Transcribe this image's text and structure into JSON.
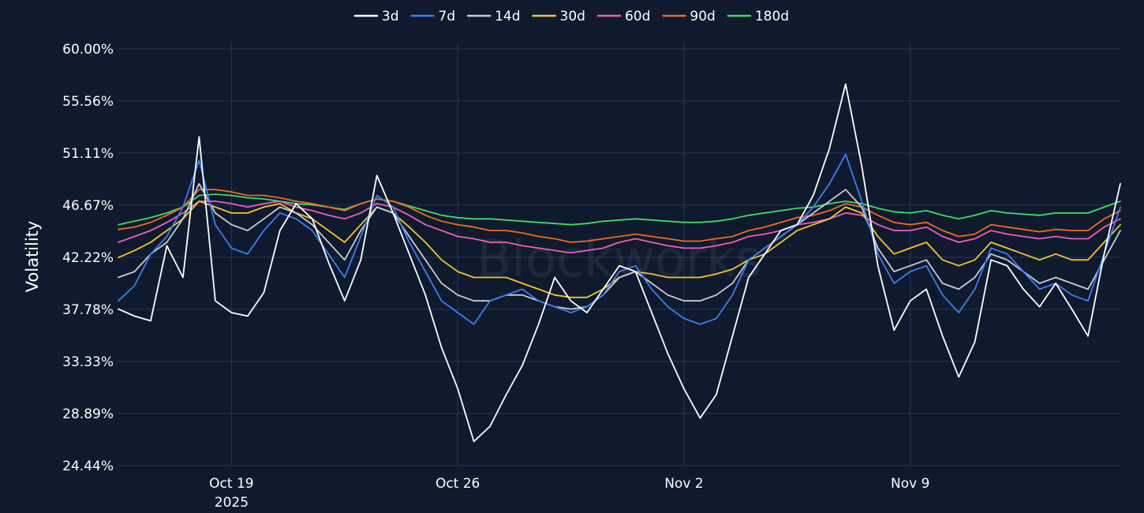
{
  "watermark": "Blockworks",
  "chart_data": {
    "type": "line",
    "title": "",
    "xlabel": "",
    "ylabel": "Volatility",
    "y_ticks": [
      "24.44%",
      "28.89%",
      "33.33%",
      "37.78%",
      "42.22%",
      "46.67%",
      "51.11%",
      "55.56%",
      "60.00%"
    ],
    "y_tick_values": [
      24.44,
      28.89,
      33.33,
      37.78,
      42.22,
      46.67,
      51.11,
      55.56,
      60.0
    ],
    "ylim": [
      24.44,
      60.0
    ],
    "x_ticks": [
      {
        "date": "2025-10-19",
        "label": "Oct 19",
        "sublabel": "2025"
      },
      {
        "date": "2025-10-26",
        "label": "Oct 26",
        "sublabel": ""
      },
      {
        "date": "2025-11-02",
        "label": "Nov 2",
        "sublabel": ""
      },
      {
        "date": "2025-11-09",
        "label": "Nov 9",
        "sublabel": ""
      }
    ],
    "xlim": [
      "2025-10-15 12:00",
      "2025-11-15 12:00"
    ],
    "grid": true,
    "legend_position": "top",
    "x": [
      "2025-10-15 12:00",
      "2025-10-16 00:00",
      "2025-10-16 12:00",
      "2025-10-17 00:00",
      "2025-10-17 12:00",
      "2025-10-18 00:00",
      "2025-10-18 12:00",
      "2025-10-19 00:00",
      "2025-10-19 12:00",
      "2025-10-20 00:00",
      "2025-10-20 12:00",
      "2025-10-21 00:00",
      "2025-10-21 12:00",
      "2025-10-22 00:00",
      "2025-10-22 12:00",
      "2025-10-23 00:00",
      "2025-10-23 12:00",
      "2025-10-24 00:00",
      "2025-10-24 12:00",
      "2025-10-25 00:00",
      "2025-10-25 12:00",
      "2025-10-26 00:00",
      "2025-10-26 12:00",
      "2025-10-27 00:00",
      "2025-10-27 12:00",
      "2025-10-28 00:00",
      "2025-10-28 12:00",
      "2025-10-29 00:00",
      "2025-10-29 12:00",
      "2025-10-30 00:00",
      "2025-10-30 12:00",
      "2025-10-31 00:00",
      "2025-10-31 12:00",
      "2025-11-01 00:00",
      "2025-11-01 12:00",
      "2025-11-02 00:00",
      "2025-11-02 12:00",
      "2025-11-03 00:00",
      "2025-11-03 12:00",
      "2025-11-04 00:00",
      "2025-11-04 12:00",
      "2025-11-05 00:00",
      "2025-11-05 12:00",
      "2025-11-06 00:00",
      "2025-11-06 12:00",
      "2025-11-07 00:00",
      "2025-11-07 12:00",
      "2025-11-08 00:00",
      "2025-11-08 12:00",
      "2025-11-09 00:00",
      "2025-11-09 12:00",
      "2025-11-10 00:00",
      "2025-11-10 12:00",
      "2025-11-11 00:00",
      "2025-11-11 12:00",
      "2025-11-12 00:00",
      "2025-11-12 12:00",
      "2025-11-13 00:00",
      "2025-11-13 12:00",
      "2025-11-14 00:00",
      "2025-11-14 12:00",
      "2025-11-15 00:00",
      "2025-11-15 12:00"
    ],
    "series": [
      {
        "name": "3d",
        "color": "#ffffff",
        "values": [
          37.8,
          37.2,
          36.8,
          43.2,
          40.5,
          52.5,
          38.5,
          37.5,
          37.2,
          39.2,
          44.5,
          46.8,
          45.5,
          41.8,
          38.5,
          42.0,
          49.2,
          46.0,
          42.5,
          39.0,
          34.5,
          31.0,
          26.5,
          27.8,
          30.5,
          33.0,
          36.5,
          40.5,
          38.5,
          37.5,
          39.5,
          41.5,
          41.0,
          37.5,
          34.0,
          31.0,
          28.5,
          30.5,
          35.5,
          40.5,
          42.5,
          44.5,
          45.0,
          47.5,
          51.5,
          57.0,
          50.0,
          41.5,
          36.0,
          38.5,
          39.5,
          35.5,
          32.0,
          35.0,
          42.0,
          41.5,
          39.5,
          38.0,
          40.0,
          37.8,
          35.5,
          42.5,
          48.5
        ]
      },
      {
        "name": "7d",
        "color": "#3d7ef0",
        "values": [
          38.5,
          39.8,
          42.5,
          44.0,
          46.5,
          50.5,
          45.0,
          43.0,
          42.5,
          44.5,
          46.0,
          45.5,
          44.5,
          42.5,
          40.5,
          44.0,
          47.5,
          46.5,
          43.5,
          41.0,
          38.5,
          37.5,
          36.5,
          38.5,
          39.0,
          39.5,
          38.5,
          38.0,
          37.5,
          38.0,
          39.0,
          41.0,
          41.5,
          39.5,
          38.0,
          37.0,
          36.5,
          37.0,
          39.0,
          42.0,
          43.0,
          44.0,
          45.0,
          46.5,
          48.5,
          51.0,
          47.0,
          42.5,
          40.0,
          41.0,
          41.5,
          39.0,
          37.5,
          39.5,
          43.0,
          42.5,
          41.0,
          39.5,
          40.0,
          39.0,
          38.5,
          42.5,
          46.5
        ]
      },
      {
        "name": "14d",
        "color": "#c8ccd4",
        "values": [
          40.5,
          41.0,
          42.5,
          43.5,
          45.5,
          48.5,
          46.0,
          45.0,
          44.5,
          45.5,
          46.5,
          46.0,
          45.0,
          43.5,
          42.0,
          44.5,
          46.5,
          46.0,
          44.0,
          42.0,
          40.0,
          39.0,
          38.5,
          38.5,
          39.0,
          39.0,
          38.5,
          38.0,
          37.8,
          38.0,
          39.0,
          40.5,
          41.0,
          40.0,
          39.0,
          38.5,
          38.5,
          39.0,
          40.0,
          42.0,
          43.0,
          44.0,
          45.0,
          46.0,
          47.0,
          48.0,
          46.5,
          43.0,
          41.0,
          41.5,
          42.0,
          40.0,
          39.5,
          40.5,
          42.5,
          42.0,
          41.0,
          40.0,
          40.5,
          40.0,
          39.5,
          42.0,
          44.5
        ]
      },
      {
        "name": "30d",
        "color": "#f4c430",
        "values": [
          42.2,
          42.8,
          43.5,
          44.5,
          45.5,
          47.0,
          46.5,
          46.0,
          46.0,
          46.5,
          46.8,
          46.0,
          45.5,
          44.5,
          43.5,
          45.0,
          46.5,
          46.0,
          44.8,
          43.5,
          42.0,
          41.0,
          40.5,
          40.5,
          40.5,
          40.0,
          39.5,
          39.0,
          38.8,
          38.8,
          39.5,
          40.5,
          41.0,
          40.8,
          40.5,
          40.5,
          40.5,
          40.8,
          41.2,
          42.0,
          42.5,
          43.5,
          44.5,
          45.0,
          45.5,
          46.5,
          46.0,
          44.0,
          42.5,
          43.0,
          43.5,
          42.0,
          41.5,
          42.0,
          43.5,
          43.0,
          42.5,
          42.0,
          42.5,
          42.0,
          42.0,
          43.5,
          45.0
        ]
      },
      {
        "name": "60d",
        "color": "#ec5fb9",
        "values": [
          43.5,
          44.0,
          44.5,
          45.2,
          46.0,
          47.0,
          47.0,
          46.8,
          46.5,
          46.8,
          47.0,
          46.5,
          46.2,
          45.8,
          45.5,
          46.0,
          46.8,
          46.5,
          45.8,
          45.0,
          44.5,
          44.0,
          43.8,
          43.5,
          43.5,
          43.2,
          43.0,
          42.8,
          42.6,
          42.8,
          43.0,
          43.5,
          43.8,
          43.5,
          43.2,
          43.0,
          43.0,
          43.2,
          43.5,
          44.0,
          44.2,
          44.5,
          45.0,
          45.2,
          45.5,
          46.0,
          45.8,
          45.0,
          44.5,
          44.5,
          44.8,
          44.0,
          43.5,
          43.8,
          44.5,
          44.2,
          44.0,
          43.8,
          44.0,
          43.8,
          43.8,
          44.8,
          45.5
        ]
      },
      {
        "name": "90d",
        "color": "#f06a1c",
        "values": [
          44.6,
          44.8,
          45.2,
          45.8,
          46.5,
          48.0,
          48.0,
          47.8,
          47.5,
          47.5,
          47.3,
          47.0,
          46.8,
          46.5,
          46.2,
          46.8,
          47.2,
          47.0,
          46.5,
          45.8,
          45.3,
          45.0,
          44.8,
          44.5,
          44.5,
          44.3,
          44.0,
          43.8,
          43.5,
          43.6,
          43.8,
          44.0,
          44.2,
          44.0,
          43.8,
          43.6,
          43.6,
          43.8,
          44.0,
          44.5,
          44.8,
          45.2,
          45.6,
          45.8,
          46.2,
          46.8,
          46.5,
          45.8,
          45.2,
          45.0,
          45.2,
          44.5,
          44.0,
          44.2,
          45.0,
          44.8,
          44.6,
          44.4,
          44.6,
          44.5,
          44.5,
          45.5,
          46.2
        ]
      },
      {
        "name": "180d",
        "color": "#3ddc68",
        "values": [
          45.0,
          45.3,
          45.6,
          46.0,
          46.5,
          47.5,
          47.6,
          47.5,
          47.3,
          47.2,
          47.0,
          46.8,
          46.7,
          46.5,
          46.3,
          46.8,
          47.2,
          47.0,
          46.6,
          46.2,
          45.8,
          45.6,
          45.5,
          45.5,
          45.4,
          45.3,
          45.2,
          45.1,
          45.0,
          45.1,
          45.3,
          45.4,
          45.5,
          45.4,
          45.3,
          45.2,
          45.2,
          45.3,
          45.5,
          45.8,
          46.0,
          46.2,
          46.4,
          46.5,
          46.8,
          47.0,
          46.8,
          46.4,
          46.1,
          46.0,
          46.2,
          45.8,
          45.5,
          45.8,
          46.2,
          46.0,
          45.9,
          45.8,
          46.0,
          46.0,
          46.0,
          46.5,
          47.0
        ]
      }
    ]
  }
}
